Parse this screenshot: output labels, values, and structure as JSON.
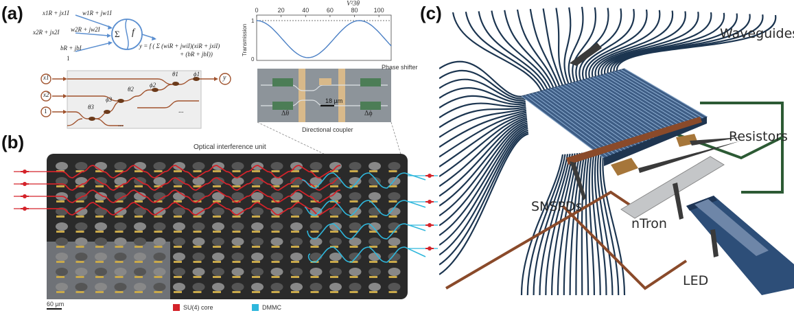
{
  "panels": {
    "a": "(a)",
    "b": "(b)",
    "c": "(c)"
  },
  "neuron": {
    "in1": "x1R + jx1I",
    "w1": "w1R + jw1I",
    "in2": "x2R + jx2I",
    "w2": "w2R + jw2I",
    "bias": "bR + jbI",
    "one": "1",
    "sum": "Σ",
    "f": "f",
    "out_eq": "y = f ( Σ (wiR + jwiI)(xiR + jxiI)",
    "out_eq2": "+ (bR + jbI))"
  },
  "mesh": {
    "x1": "x1",
    "x2": "x2",
    "one": "1",
    "y": "y",
    "theta1": "θ1",
    "phi1": "ϕ1",
    "theta2": "θ2",
    "phi2": "ϕ2",
    "theta3": "θ3",
    "phi3": "ϕ3",
    "ellipsis": "...",
    "ellipsis2": "..."
  },
  "transmission_plot": {
    "xlabel": "V²3θ",
    "ylabel": "Transmission",
    "xticks": [
      "0",
      "20",
      "40",
      "60",
      "80",
      "100"
    ],
    "yticks": [
      "0",
      "1"
    ]
  },
  "chip_inset": {
    "phase_shifter": "Phase shifter",
    "scale": "18 µm",
    "dtheta": "Δθ",
    "dphi": "Δϕ",
    "directional_coupler": "Directional coupler"
  },
  "panel_b": {
    "title": "Optical interference unit",
    "scale": "60 µm",
    "legend": [
      {
        "label": "SU(4) core",
        "color": "#d4232a"
      },
      {
        "label": "DMMC",
        "color": "#2fb7dc"
      }
    ]
  },
  "panel_c": {
    "waveguides": "Waveguides",
    "resistors": "Resistors",
    "snspds": "SNSPDs",
    "ntron": "nTron",
    "led": "LED"
  }
}
